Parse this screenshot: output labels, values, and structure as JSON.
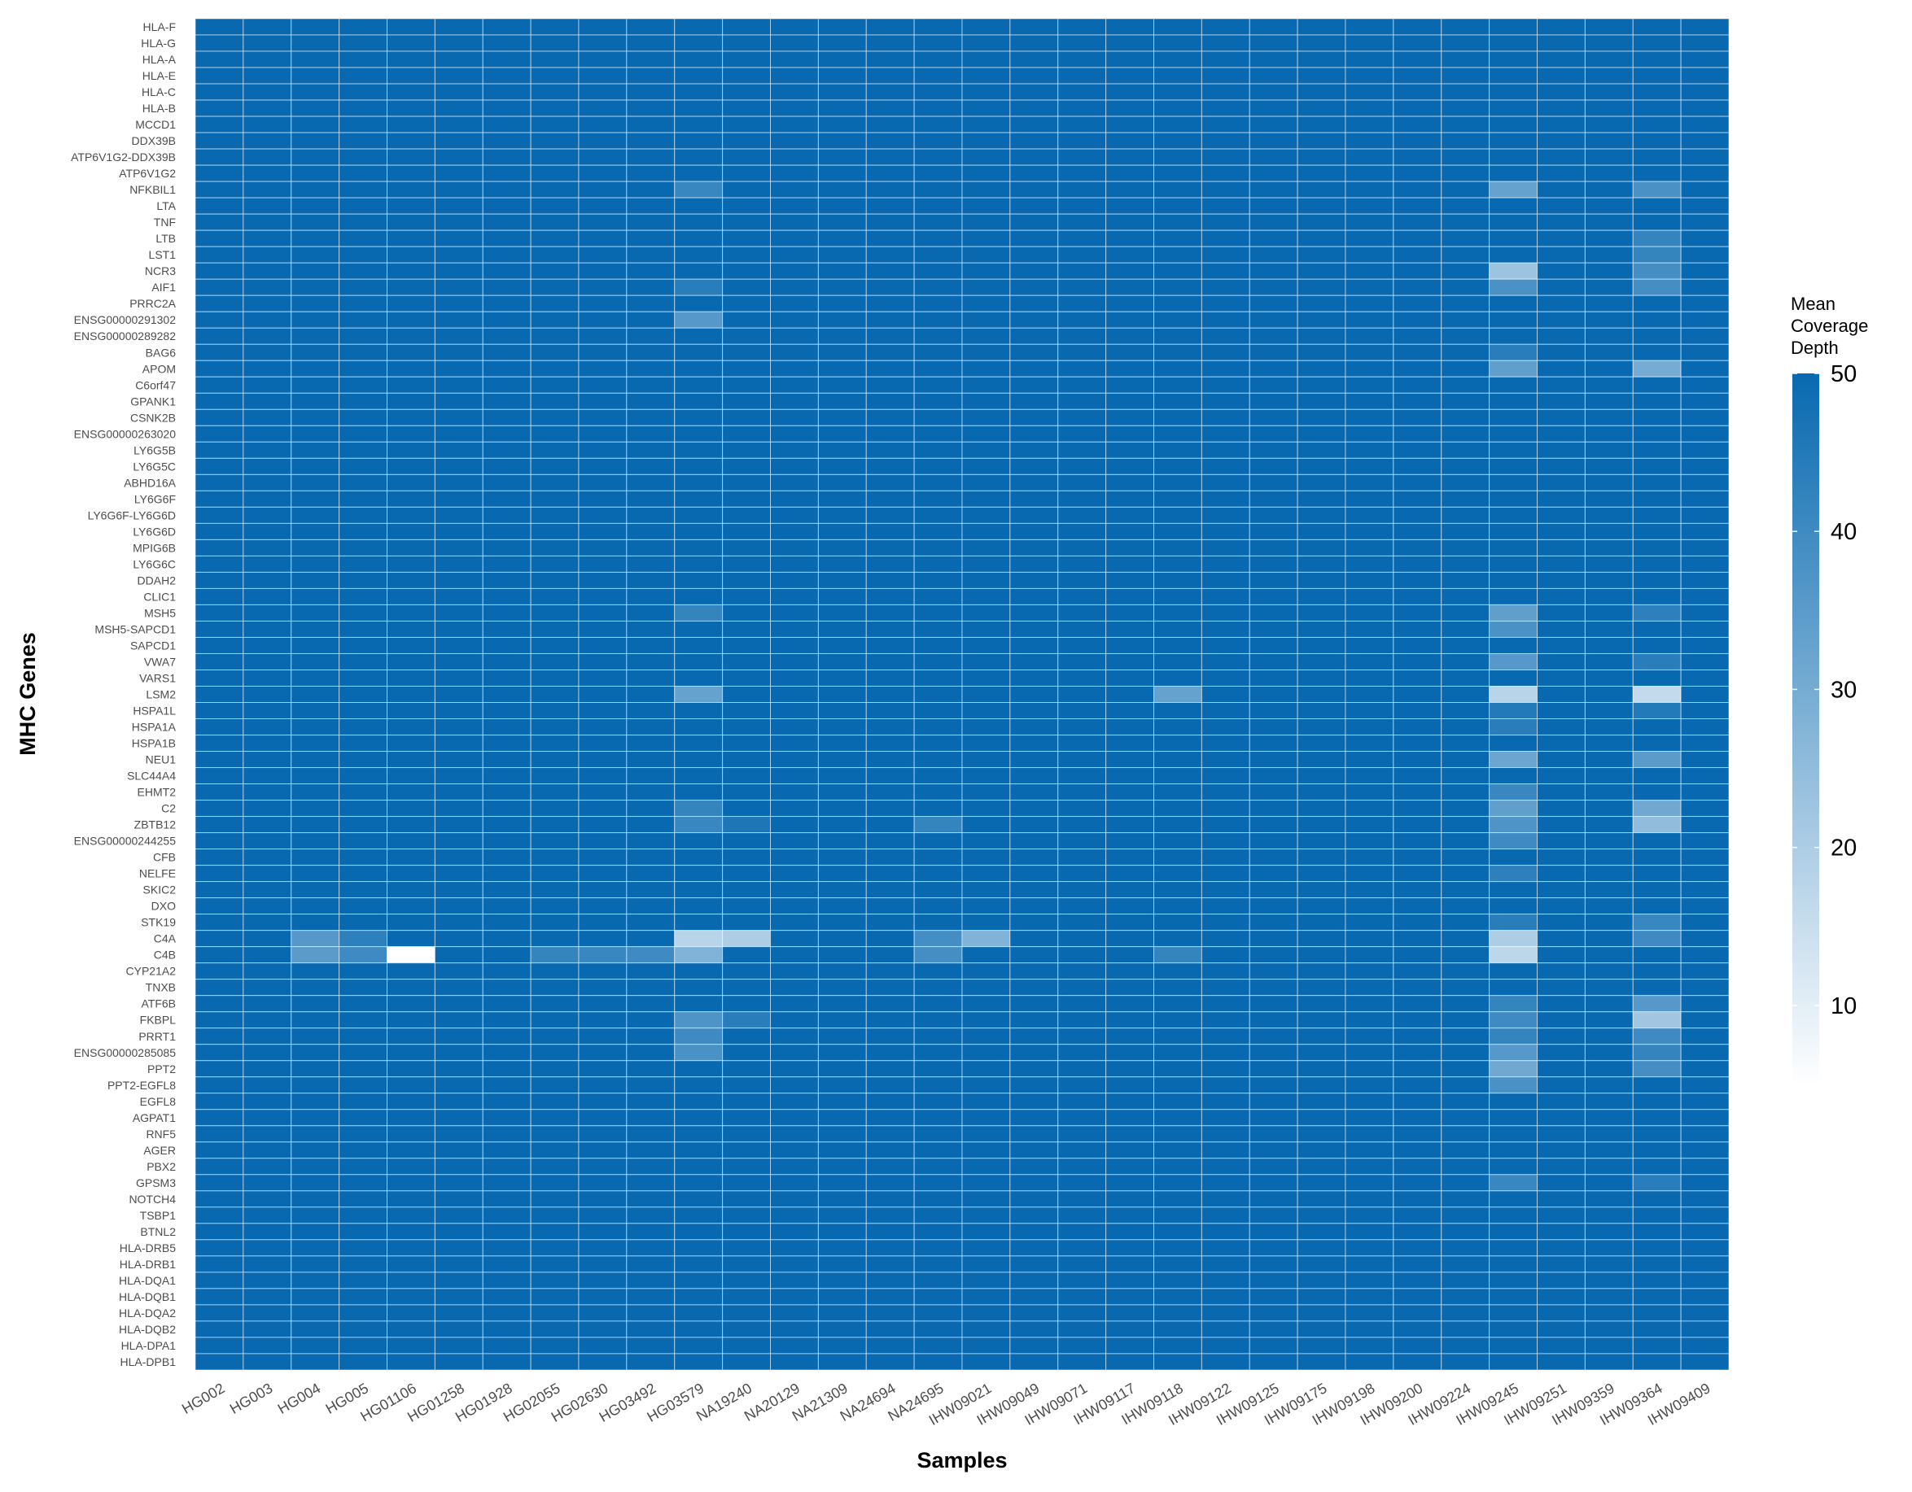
{
  "chart_data": {
    "type": "heatmap",
    "xlabel": "Samples",
    "ylabel": "MHC Genes",
    "x": [
      "HG002",
      "HG003",
      "HG004",
      "HG005",
      "HG01106",
      "HG01258",
      "HG01928",
      "HG02055",
      "HG02630",
      "HG03492",
      "HG03579",
      "NA19240",
      "NA20129",
      "NA21309",
      "NA24694",
      "NA24695",
      "IHW09021",
      "IHW09049",
      "IHW09071",
      "IHW09117",
      "IHW09118",
      "IHW09122",
      "IHW09125",
      "IHW09175",
      "IHW09198",
      "IHW09200",
      "IHW09224",
      "IHW09245",
      "IHW09251",
      "IHW09359",
      "IHW09364",
      "IHW09409"
    ],
    "y": [
      "HLA-F",
      "HLA-G",
      "HLA-A",
      "HLA-E",
      "HLA-C",
      "HLA-B",
      "MCCD1",
      "DDX39B",
      "ATP6V1G2-DDX39B",
      "ATP6V1G2",
      "NFKBIL1",
      "LTA",
      "TNF",
      "LTB",
      "LST1",
      "NCR3",
      "AIF1",
      "PRRC2A",
      "ENSG00000291302",
      "ENSG00000289282",
      "BAG6",
      "APOM",
      "C6orf47",
      "GPANK1",
      "CSNK2B",
      "ENSG00000263020",
      "LY6G5B",
      "LY6G5C",
      "ABHD16A",
      "LY6G6F",
      "LY6G6F-LY6G6D",
      "LY6G6D",
      "MPIG6B",
      "LY6G6C",
      "DDAH2",
      "CLIC1",
      "MSH5",
      "MSH5-SAPCD1",
      "SAPCD1",
      "VWA7",
      "VARS1",
      "LSM2",
      "HSPA1L",
      "HSPA1A",
      "HSPA1B",
      "NEU1",
      "SLC44A4",
      "EHMT2",
      "C2",
      "ZBTB12",
      "ENSG00000244255",
      "CFB",
      "NELFE",
      "SKIC2",
      "DXO",
      "STK19",
      "C4A",
      "C4B",
      "CYP21A2",
      "TNXB",
      "ATF6B",
      "FKBPL",
      "PRRT1",
      "ENSG00000285085",
      "PPT2",
      "PPT2-EGFL8",
      "EGFL8",
      "AGPAT1",
      "RNF5",
      "AGER",
      "PBX2",
      "GPSM3",
      "NOTCH4",
      "TSBP1",
      "BTNL2",
      "HLA-DRB5",
      "HLA-DRB1",
      "HLA-DQA1",
      "HLA-DQB1",
      "HLA-DQA2",
      "HLA-DQB2",
      "HLA-DPA1",
      "HLA-DPB1"
    ],
    "default_value": 50,
    "cells": [
      {
        "gene": "NFKBIL1",
        "sample": "HG03579",
        "value": 41
      },
      {
        "gene": "NFKBIL1",
        "sample": "IHW09245",
        "value": 33
      },
      {
        "gene": "NFKBIL1",
        "sample": "IHW09364",
        "value": 38
      },
      {
        "gene": "LTB",
        "sample": "IHW09364",
        "value": 42
      },
      {
        "gene": "LST1",
        "sample": "IHW09364",
        "value": 42
      },
      {
        "gene": "NCR3",
        "sample": "IHW09245",
        "value": 23
      },
      {
        "gene": "NCR3",
        "sample": "IHW09364",
        "value": 39
      },
      {
        "gene": "AIF1",
        "sample": "HG03579",
        "value": 44
      },
      {
        "gene": "AIF1",
        "sample": "IHW09245",
        "value": 38
      },
      {
        "gene": "AIF1",
        "sample": "IHW09364",
        "value": 39
      },
      {
        "gene": "ENSG00000291302",
        "sample": "HG03579",
        "value": 36
      },
      {
        "gene": "BAG6",
        "sample": "IHW09245",
        "value": 44
      },
      {
        "gene": "APOM",
        "sample": "IHW09245",
        "value": 34
      },
      {
        "gene": "APOM",
        "sample": "IHW09364",
        "value": 30
      },
      {
        "gene": "MSH5",
        "sample": "HG03579",
        "value": 42
      },
      {
        "gene": "MSH5",
        "sample": "IHW09245",
        "value": 34
      },
      {
        "gene": "MSH5",
        "sample": "IHW09364",
        "value": 43
      },
      {
        "gene": "MSH5-SAPCD1",
        "sample": "IHW09245",
        "value": 38
      },
      {
        "gene": "VWA7",
        "sample": "IHW09245",
        "value": 36
      },
      {
        "gene": "VWA7",
        "sample": "IHW09364",
        "value": 44
      },
      {
        "gene": "LSM2",
        "sample": "HG03579",
        "value": 33
      },
      {
        "gene": "LSM2",
        "sample": "IHW09118",
        "value": 33
      },
      {
        "gene": "LSM2",
        "sample": "IHW09245",
        "value": 18
      },
      {
        "gene": "LSM2",
        "sample": "IHW09364",
        "value": 16
      },
      {
        "gene": "HSPA1L",
        "sample": "IHW09245",
        "value": 45
      },
      {
        "gene": "HSPA1L",
        "sample": "IHW09364",
        "value": 45
      },
      {
        "gene": "HSPA1A",
        "sample": "IHW09245",
        "value": 44
      },
      {
        "gene": "NEU1",
        "sample": "IHW09245",
        "value": 32
      },
      {
        "gene": "NEU1",
        "sample": "IHW09364",
        "value": 35
      },
      {
        "gene": "EHMT2",
        "sample": "IHW09245",
        "value": 41
      },
      {
        "gene": "C2",
        "sample": "HG03579",
        "value": 42
      },
      {
        "gene": "C2",
        "sample": "IHW09245",
        "value": 34
      },
      {
        "gene": "C2",
        "sample": "IHW09364",
        "value": 31
      },
      {
        "gene": "ZBTB12",
        "sample": "HG03579",
        "value": 41
      },
      {
        "gene": "ZBTB12",
        "sample": "NA19240",
        "value": 46
      },
      {
        "gene": "ZBTB12",
        "sample": "NA24695",
        "value": 42
      },
      {
        "gene": "ZBTB12",
        "sample": "IHW09245",
        "value": 37
      },
      {
        "gene": "ZBTB12",
        "sample": "IHW09364",
        "value": 25
      },
      {
        "gene": "ENSG00000244255",
        "sample": "IHW09245",
        "value": 40
      },
      {
        "gene": "NELFE",
        "sample": "IHW09245",
        "value": 43
      },
      {
        "gene": "STK19",
        "sample": "IHW09245",
        "value": 44
      },
      {
        "gene": "STK19",
        "sample": "IHW09364",
        "value": 41
      },
      {
        "gene": "C4A",
        "sample": "HG004",
        "value": 36
      },
      {
        "gene": "C4A",
        "sample": "HG005",
        "value": 43
      },
      {
        "gene": "C4A",
        "sample": "HG03579",
        "value": 18
      },
      {
        "gene": "C4A",
        "sample": "NA19240",
        "value": 20
      },
      {
        "gene": "C4A",
        "sample": "NA24695",
        "value": 39
      },
      {
        "gene": "C4A",
        "sample": "IHW09021",
        "value": 28
      },
      {
        "gene": "C4A",
        "sample": "IHW09245",
        "value": 20
      },
      {
        "gene": "C4A",
        "sample": "IHW09364",
        "value": 40
      },
      {
        "gene": "C4B",
        "sample": "HG004",
        "value": 35
      },
      {
        "gene": "C4B",
        "sample": "HG005",
        "value": 40
      },
      {
        "gene": "C4B",
        "sample": "HG01106",
        "value": 5
      },
      {
        "gene": "C4B",
        "sample": "HG02055",
        "value": 42
      },
      {
        "gene": "C4B",
        "sample": "HG02630",
        "value": 41
      },
      {
        "gene": "C4B",
        "sample": "HG03492",
        "value": 40
      },
      {
        "gene": "C4B",
        "sample": "HG03579",
        "value": 28
      },
      {
        "gene": "C4B",
        "sample": "NA24695",
        "value": 39
      },
      {
        "gene": "C4B",
        "sample": "IHW09118",
        "value": 42
      },
      {
        "gene": "C4B",
        "sample": "IHW09245",
        "value": 17
      },
      {
        "gene": "ATF6B",
        "sample": "IHW09245",
        "value": 42
      },
      {
        "gene": "ATF6B",
        "sample": "IHW09364",
        "value": 36
      },
      {
        "gene": "FKBPL",
        "sample": "HG03579",
        "value": 37
      },
      {
        "gene": "FKBPL",
        "sample": "NA19240",
        "value": 44
      },
      {
        "gene": "FKBPL",
        "sample": "IHW09245",
        "value": 40
      },
      {
        "gene": "FKBPL",
        "sample": "IHW09364",
        "value": 22
      },
      {
        "gene": "PRRT1",
        "sample": "HG03579",
        "value": 40
      },
      {
        "gene": "PRRT1",
        "sample": "IHW09245",
        "value": 42
      },
      {
        "gene": "PRRT1",
        "sample": "IHW09364",
        "value": 40
      },
      {
        "gene": "ENSG00000285085",
        "sample": "HG03579",
        "value": 38
      },
      {
        "gene": "ENSG00000285085",
        "sample": "IHW09245",
        "value": 36
      },
      {
        "gene": "ENSG00000285085",
        "sample": "IHW09364",
        "value": 42
      },
      {
        "gene": "PPT2",
        "sample": "IHW09245",
        "value": 31
      },
      {
        "gene": "PPT2",
        "sample": "IHW09364",
        "value": 39
      },
      {
        "gene": "PPT2-EGFL8",
        "sample": "IHW09245",
        "value": 38
      },
      {
        "gene": "GPSM3",
        "sample": "IHW09245",
        "value": 41
      },
      {
        "gene": "GPSM3",
        "sample": "IHW09364",
        "value": 44
      }
    ],
    "colorscale": {
      "low": "#ffffff",
      "high": "#0869b0",
      "domain": [
        5,
        50
      ]
    },
    "legend": {
      "title": [
        "Mean",
        "Coverage",
        "Depth"
      ],
      "ticks": [
        10,
        20,
        30,
        40,
        50
      ],
      "placement": "right"
    },
    "grid": true
  }
}
